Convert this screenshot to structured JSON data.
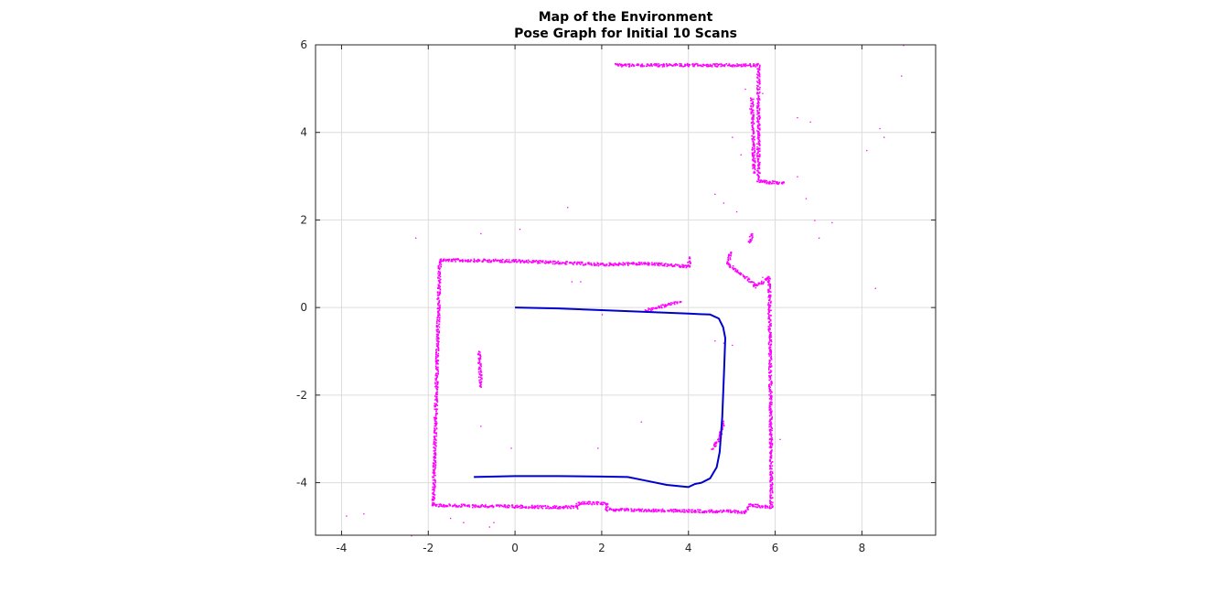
{
  "chart_data": {
    "type": "scatter",
    "title": [
      "Map of the Environment",
      "Pose Graph for Initial 10 Scans"
    ],
    "xlabel": "",
    "ylabel": "",
    "xlim": [
      -4.6,
      9.7
    ],
    "ylim": [
      -5.2,
      6.0
    ],
    "xticks": [
      -4,
      -2,
      0,
      2,
      4,
      6,
      8
    ],
    "yticks": [
      -4,
      -2,
      0,
      2,
      4,
      6
    ],
    "grid": true,
    "colors": {
      "map": "#ff00ff",
      "path": "#0000cc",
      "grid": "#dcdcdc",
      "axes": "#262626"
    },
    "series": [
      {
        "kind": "map-walls",
        "style": "dots",
        "polylines": [
          [
            [
              -1.75,
              1.1
            ],
            [
              0.0,
              1.08
            ],
            [
              2.0,
              1.0
            ],
            [
              3.0,
              1.02
            ],
            [
              4.0,
              0.95
            ],
            [
              4.0,
              1.15
            ]
          ],
          [
            [
              -1.75,
              1.1
            ],
            [
              -1.9,
              -4.5
            ]
          ],
          [
            [
              -1.9,
              -4.5
            ],
            [
              1.4,
              -4.55
            ],
            [
              1.45,
              -4.45
            ],
            [
              2.1,
              -4.45
            ],
            [
              2.1,
              -4.6
            ],
            [
              5.3,
              -4.65
            ],
            [
              5.4,
              -4.5
            ],
            [
              5.9,
              -4.55
            ]
          ],
          [
            [
              5.9,
              -4.55
            ],
            [
              5.85,
              0.6
            ]
          ],
          [
            [
              5.85,
              0.6
            ],
            [
              5.85,
              0.7
            ],
            [
              5.55,
              0.5
            ],
            [
              4.9,
              1.0
            ],
            [
              4.95,
              1.3
            ]
          ],
          [
            [
              5.4,
              1.5
            ],
            [
              5.45,
              1.7
            ]
          ],
          [
            [
              2.3,
              5.55
            ],
            [
              5.6,
              5.55
            ],
            [
              5.6,
              2.9
            ],
            [
              6.2,
              2.85
            ]
          ],
          [
            [
              5.45,
              4.8
            ],
            [
              5.5,
              3.1
            ]
          ],
          [
            [
              -0.85,
              -1.0
            ],
            [
              -0.8,
              -1.8
            ]
          ],
          [
            [
              4.8,
              -2.6
            ],
            [
              4.7,
              -3.0
            ],
            [
              4.55,
              -3.2
            ]
          ],
          [
            [
              3.0,
              -0.05
            ],
            [
              3.8,
              0.15
            ]
          ]
        ],
        "scatter": [
          [
            -2.3,
            1.6
          ],
          [
            0.1,
            1.8
          ],
          [
            1.2,
            2.3
          ],
          [
            -0.8,
            1.7
          ],
          [
            -3.5,
            -4.7
          ],
          [
            -3.9,
            -4.75
          ],
          [
            -2.4,
            -5.2
          ],
          [
            -0.5,
            -4.9
          ],
          [
            -0.8,
            -2.7
          ],
          [
            -0.1,
            -3.2
          ],
          [
            1.9,
            -3.2
          ],
          [
            2.9,
            -2.6
          ],
          [
            1.3,
            0.6
          ],
          [
            1.5,
            0.6
          ],
          [
            2.0,
            -0.15
          ],
          [
            4.6,
            -0.75
          ],
          [
            4.8,
            -0.8
          ],
          [
            5.0,
            -0.85
          ],
          [
            6.5,
            3.0
          ],
          [
            6.7,
            2.5
          ],
          [
            6.9,
            2.0
          ],
          [
            7.0,
            1.6
          ],
          [
            7.3,
            1.95
          ],
          [
            6.8,
            4.25
          ],
          [
            6.5,
            4.35
          ],
          [
            8.4,
            4.1
          ],
          [
            8.5,
            3.9
          ],
          [
            8.1,
            3.6
          ],
          [
            8.3,
            0.45
          ],
          [
            8.9,
            5.3
          ],
          [
            8.95,
            6.0
          ],
          [
            5.0,
            3.9
          ],
          [
            5.2,
            3.5
          ],
          [
            4.6,
            2.6
          ],
          [
            4.8,
            2.4
          ],
          [
            5.1,
            2.2
          ],
          [
            5.7,
            4.9
          ],
          [
            5.3,
            5.0
          ],
          [
            5.4,
            4.55
          ],
          [
            5.7,
            0.7
          ],
          [
            6.1,
            -3.0
          ],
          [
            -1.5,
            -4.8
          ],
          [
            -1.2,
            -4.9
          ],
          [
            -0.6,
            -5.0
          ]
        ]
      },
      {
        "kind": "pose-path",
        "style": "line",
        "points": [
          [
            0.0,
            0.0
          ],
          [
            1.0,
            -0.02
          ],
          [
            2.0,
            -0.06
          ],
          [
            3.0,
            -0.1
          ],
          [
            4.0,
            -0.14
          ],
          [
            4.5,
            -0.16
          ],
          [
            4.7,
            -0.25
          ],
          [
            4.8,
            -0.45
          ],
          [
            4.85,
            -0.7
          ],
          [
            4.82,
            -1.5
          ],
          [
            4.78,
            -2.5
          ],
          [
            4.72,
            -3.3
          ],
          [
            4.65,
            -3.65
          ],
          [
            4.5,
            -3.9
          ],
          [
            4.3,
            -4.0
          ],
          [
            4.15,
            -4.03
          ],
          [
            4.0,
            -4.1
          ],
          [
            3.5,
            -4.05
          ],
          [
            3.0,
            -3.95
          ],
          [
            2.6,
            -3.87
          ],
          [
            2.0,
            -3.86
          ],
          [
            1.0,
            -3.85
          ],
          [
            0.0,
            -3.85
          ],
          [
            -0.95,
            -3.87
          ]
        ]
      }
    ]
  }
}
